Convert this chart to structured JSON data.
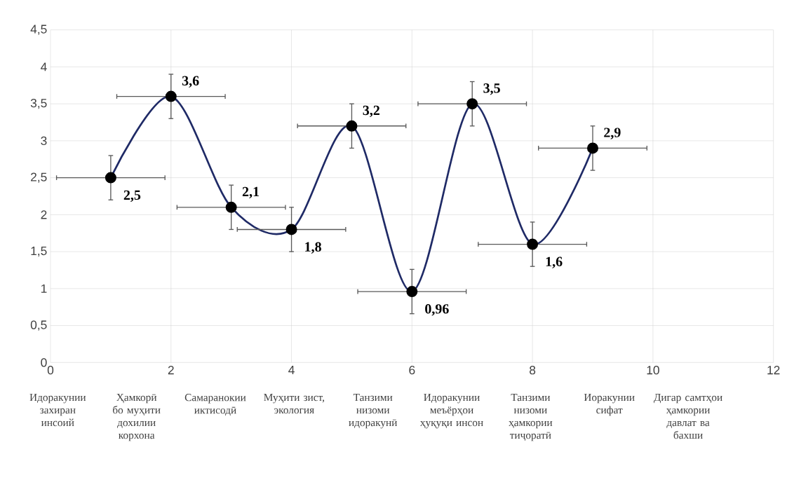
{
  "chart_data": {
    "type": "line",
    "x": [
      1,
      2,
      3,
      4,
      5,
      6,
      7,
      8,
      9
    ],
    "series": [
      {
        "color": "#1f2a66",
        "values": [
          2.5,
          3.6,
          2.1,
          1.8,
          3.2,
          0.96,
          3.5,
          1.6,
          2.9
        ],
        "errors": [
          0.3,
          0.3,
          0.3,
          0.3,
          0.3,
          0.3,
          0.3,
          0.3,
          0.3
        ],
        "xerrors": [
          0.9,
          0.9,
          0.9,
          0.9,
          0.9,
          0.9,
          0.9,
          0.9,
          0.9
        ],
        "value_labels": [
          "2,5",
          "3,6",
          "2,1",
          "1,8",
          "3,2",
          "0,96",
          "3,5",
          "1,6",
          "2,9"
        ]
      }
    ],
    "marker": "circle",
    "line_style": "solid",
    "grid": true,
    "xlim": [
      0,
      12
    ],
    "xticks": [
      0,
      2,
      4,
      6,
      8,
      10,
      12
    ],
    "ylim": [
      0,
      4.5
    ],
    "yticks": [
      0,
      {
        "value": 0.5,
        "label": "0,5"
      },
      1,
      {
        "value": 1.5,
        "label": "1,5"
      },
      2,
      {
        "value": 2.5,
        "label": "2,5"
      },
      3,
      {
        "value": 3.5,
        "label": "3,5"
      },
      4,
      {
        "value": 4.5,
        "label": "4,5"
      }
    ],
    "annotations": [
      "Идоракунии захиран инсоий",
      "Ҳамкорӣ бо муҳити дохилии корхона",
      "Самаранокии иктисодӣ",
      "Муҳити зист, экология",
      "Танзими низоми идоракунӣ",
      "Идоракунии меъёрҳои ҳуқуқи инсон",
      "Танзими низоми ҳамкории тиҷоратӣ",
      "Иоракунии сифат",
      "Дигар самтҳои ҳамкории давлат ва бахши"
    ]
  }
}
